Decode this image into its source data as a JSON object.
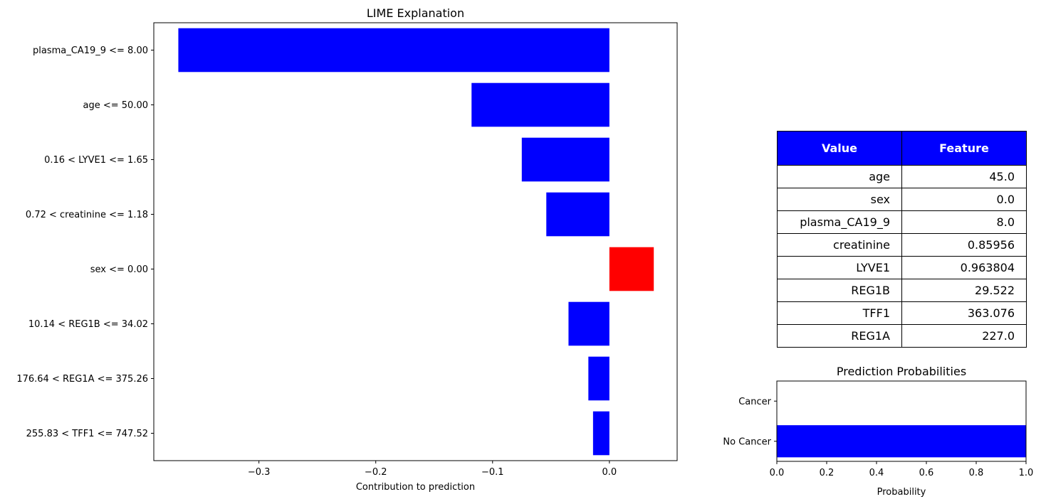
{
  "chart_data": [
    {
      "type": "bar",
      "orientation": "horizontal",
      "title": "LIME Explanation",
      "xlabel": "Contribution to prediction",
      "ylabel": "",
      "xlim": [
        -0.39,
        0.058
      ],
      "xticks": [
        -0.3,
        -0.2,
        -0.1,
        0.0
      ],
      "xtick_labels": [
        "−0.3",
        "−0.2",
        "−0.1",
        "0.0"
      ],
      "categories": [
        "plasma_CA19_9 <= 8.00",
        "age <= 50.00",
        "0.16 < LYVE1 <= 1.65",
        "0.72 < creatinine <= 1.18",
        "sex <= 0.00",
        "10.14 < REG1B <= 34.02",
        "176.64 < REG1A <= 375.26",
        "255.83 < TFF1 <= 747.52"
      ],
      "values": [
        -0.369,
        -0.118,
        -0.075,
        -0.054,
        0.038,
        -0.035,
        -0.018,
        -0.014
      ],
      "positive_color": "#ff0000",
      "negative_color": "#0000ff",
      "grid": false
    },
    {
      "type": "bar",
      "orientation": "horizontal",
      "title": "Prediction Probabilities",
      "xlabel": "Probability",
      "ylabel": "",
      "xlim": [
        0,
        1
      ],
      "xticks": [
        0,
        0.2,
        0.4,
        0.6,
        0.8,
        1.0
      ],
      "xtick_labels": [
        "0.0",
        "0.2",
        "0.4",
        "0.6",
        "0.8",
        "1.0"
      ],
      "categories": [
        "Cancer",
        "No Cancer"
      ],
      "values": [
        0.0,
        1.0
      ],
      "color": "#0000ff",
      "grid": false
    }
  ],
  "table": {
    "header_color": "#0000ff",
    "headers": [
      "Value",
      "Feature"
    ],
    "rows": [
      [
        "age",
        "45.0"
      ],
      [
        "sex",
        "0.0"
      ],
      [
        "plasma_CA19_9",
        "8.0"
      ],
      [
        "creatinine",
        "0.85956"
      ],
      [
        "LYVE1",
        "0.963804"
      ],
      [
        "REG1B",
        "29.522"
      ],
      [
        "TFF1",
        "363.076"
      ],
      [
        "REG1A",
        "227.0"
      ]
    ]
  }
}
